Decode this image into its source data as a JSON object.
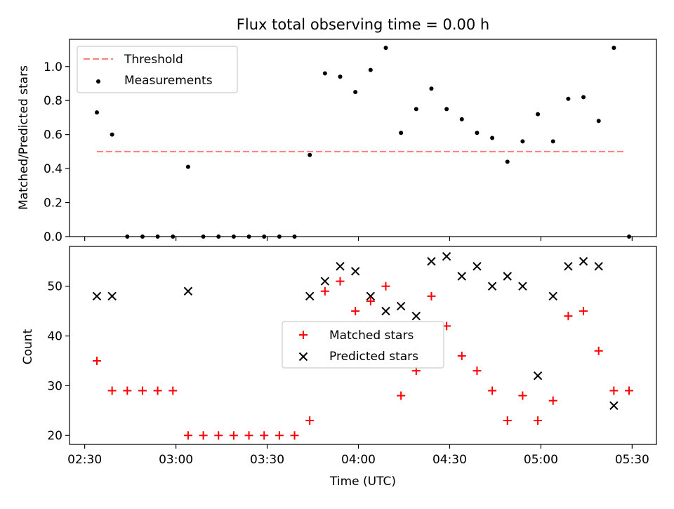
{
  "chart_data": [
    {
      "type": "scatter",
      "title": "Flux total observing time = 0.00 h",
      "xlabel": "",
      "ylabel": "Matched/Predicted stars",
      "xlim_minutes_from_0230": [
        -5,
        188
      ],
      "ylim": [
        0,
        1.16
      ],
      "yticks": [
        0.0,
        0.2,
        0.4,
        0.6,
        0.8,
        1.0
      ],
      "threshold": {
        "name": "Threshold",
        "value": 0.5,
        "x_start": "02:34",
        "x_end": "05:28",
        "color": "#ff7f7f"
      },
      "series": [
        {
          "name": "Measurements",
          "color": "#000000",
          "x": [
            "02:34",
            "02:39",
            "02:44",
            "02:49",
            "02:54",
            "02:59",
            "03:04",
            "03:09",
            "03:14",
            "03:19",
            "03:24",
            "03:29",
            "03:34",
            "03:39",
            "03:44",
            "03:49",
            "03:54",
            "03:59",
            "04:04",
            "04:09",
            "04:14",
            "04:19",
            "04:24",
            "04:29",
            "04:34",
            "04:39",
            "04:44",
            "04:49",
            "04:54",
            "04:59",
            "05:04",
            "05:09",
            "05:14",
            "05:19",
            "05:24",
            "05:29"
          ],
          "y": [
            0.73,
            0.6,
            0,
            0,
            0,
            0,
            0.41,
            0,
            0,
            0,
            0,
            0,
            0,
            0,
            0.48,
            0.96,
            0.94,
            0.85,
            0.98,
            1.11,
            0.61,
            0.75,
            0.87,
            0.75,
            0.69,
            0.61,
            0.58,
            0.44,
            0.56,
            0.72,
            0.56,
            0.81,
            0.82,
            0.68,
            1.11,
            0
          ]
        }
      ]
    },
    {
      "type": "scatter",
      "title": "",
      "xlabel": "Time (UTC)",
      "ylabel": "Count",
      "xlim_minutes_from_0230": [
        -5,
        188
      ],
      "xticks": [
        "02:30",
        "03:00",
        "03:30",
        "04:00",
        "04:30",
        "05:00",
        "05:30"
      ],
      "ylim": [
        18.2,
        58
      ],
      "yticks": [
        20,
        30,
        40,
        50
      ],
      "series": [
        {
          "name": "Matched stars",
          "marker": "+",
          "color": "#ff0000",
          "x": [
            "02:34",
            "02:39",
            "02:44",
            "02:49",
            "02:54",
            "02:59",
            "03:04",
            "03:09",
            "03:14",
            "03:19",
            "03:24",
            "03:29",
            "03:34",
            "03:39",
            "03:44",
            "03:49",
            "03:54",
            "03:59",
            "04:04",
            "04:09",
            "04:14",
            "04:19",
            "04:24",
            "04:29",
            "04:34",
            "04:39",
            "04:44",
            "04:49",
            "04:54",
            "04:59",
            "05:04",
            "05:09",
            "05:14",
            "05:19",
            "05:24",
            "05:29"
          ],
          "y": [
            35,
            29,
            29,
            29,
            29,
            29,
            20,
            20,
            20,
            20,
            20,
            20,
            20,
            20,
            23,
            49,
            51,
            45,
            47,
            50,
            28,
            33,
            48,
            42,
            36,
            33,
            29,
            23,
            28,
            23,
            27,
            44,
            45,
            37,
            29,
            29
          ]
        },
        {
          "name": "Predicted stars",
          "marker": "x",
          "color": "#000000",
          "x": [
            "02:34",
            "02:39",
            "03:04",
            "03:44",
            "03:49",
            "03:54",
            "03:59",
            "04:04",
            "04:09",
            "04:14",
            "04:19",
            "04:24",
            "04:29",
            "04:34",
            "04:39",
            "04:44",
            "04:49",
            "04:54",
            "04:59",
            "05:04",
            "05:09",
            "05:14",
            "05:19",
            "05:24"
          ],
          "y": [
            48,
            48,
            49,
            48,
            51,
            54,
            53,
            48,
            45,
            46,
            44,
            55,
            56,
            52,
            54,
            50,
            52,
            50,
            32,
            48,
            54,
            55,
            54,
            26
          ]
        }
      ]
    }
  ]
}
